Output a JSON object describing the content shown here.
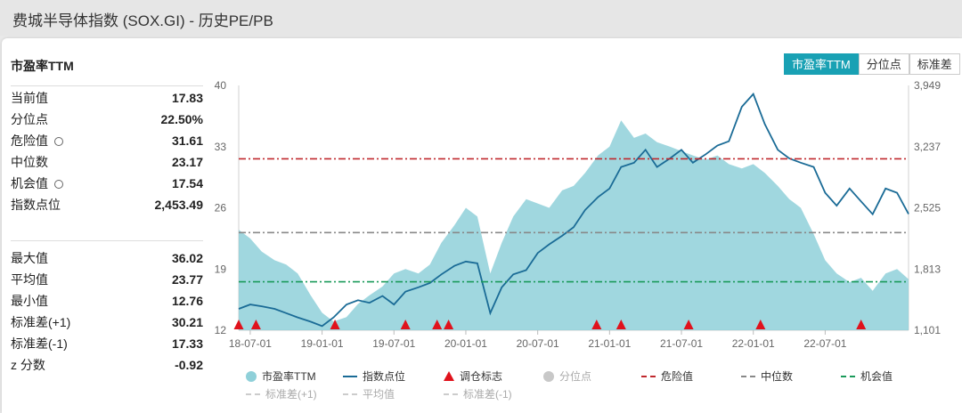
{
  "window": {
    "title": "费城半导体指数 (SOX.GI) - 历史PE/PB"
  },
  "panel": {
    "title": "市盈率TTM"
  },
  "tabs": [
    {
      "label": "市盈率TTM",
      "active": true
    },
    {
      "label": "分位点",
      "active": false
    },
    {
      "label": "标准差",
      "active": false
    }
  ],
  "stats_top": [
    {
      "label": "当前值",
      "value": "17.83",
      "gear": false
    },
    {
      "label": "分位点",
      "value": "22.50%",
      "gear": false
    },
    {
      "label": "危险值",
      "value": "31.61",
      "gear": true
    },
    {
      "label": "中位数",
      "value": "23.17",
      "gear": false
    },
    {
      "label": "机会值",
      "value": "17.54",
      "gear": true
    },
    {
      "label": "指数点位",
      "value": "2,453.49",
      "gear": false
    }
  ],
  "stats_bottom": [
    {
      "label": "最大值",
      "value": "36.02"
    },
    {
      "label": "平均值",
      "value": "23.77"
    },
    {
      "label": "最小值",
      "value": "12.76"
    },
    {
      "label": "标准差(+1)",
      "value": "30.21"
    },
    {
      "label": "标准差(-1)",
      "value": "17.33"
    },
    {
      "label": "z 分数",
      "value": "-0.92"
    }
  ],
  "chart_data": {
    "type": "area",
    "y_left_ticks": [
      "40",
      "33",
      "26",
      "19",
      "12"
    ],
    "y_left_range": [
      12,
      40
    ],
    "y_right_ticks": [
      "3,949",
      "3,237",
      "2,525",
      "1,813",
      "1,101"
    ],
    "y_right_range": [
      1101,
      3949
    ],
    "x_ticks": [
      "18-07-01",
      "19-01-01",
      "19-07-01",
      "20-01-01",
      "20-07-01",
      "21-01-01",
      "21-07-01",
      "22-01-01",
      "22-07-01"
    ],
    "x_range": [
      2018.42,
      2023.08
    ],
    "reference_lines": [
      {
        "name": "危险值",
        "value": 31.61,
        "color": "#c0282d"
      },
      {
        "name": "中位数",
        "value": 23.17,
        "color": "#888888"
      },
      {
        "name": "机会值",
        "value": 17.54,
        "color": "#1a9a5a"
      }
    ],
    "series": [
      {
        "name": "市盈率TTM",
        "axis": "left",
        "color": "#8fd0d9",
        "points": [
          [
            2018.42,
            23.5
          ],
          [
            2018.5,
            22.5
          ],
          [
            2018.58,
            21
          ],
          [
            2018.67,
            20
          ],
          [
            2018.75,
            19.5
          ],
          [
            2018.83,
            18.5
          ],
          [
            2018.92,
            16
          ],
          [
            2019.0,
            14
          ],
          [
            2019.08,
            13
          ],
          [
            2019.17,
            13.5
          ],
          [
            2019.25,
            15
          ],
          [
            2019.33,
            16
          ],
          [
            2019.42,
            17
          ],
          [
            2019.5,
            18.5
          ],
          [
            2019.58,
            19
          ],
          [
            2019.67,
            18.5
          ],
          [
            2019.75,
            19.5
          ],
          [
            2019.83,
            22
          ],
          [
            2019.92,
            24
          ],
          [
            2020.0,
            26
          ],
          [
            2020.08,
            25
          ],
          [
            2020.17,
            18.5
          ],
          [
            2020.25,
            22
          ],
          [
            2020.33,
            25
          ],
          [
            2020.42,
            27
          ],
          [
            2020.5,
            26.5
          ],
          [
            2020.58,
            26
          ],
          [
            2020.67,
            28
          ],
          [
            2020.75,
            28.5
          ],
          [
            2020.83,
            30
          ],
          [
            2020.92,
            32
          ],
          [
            2021.0,
            33
          ],
          [
            2021.08,
            36
          ],
          [
            2021.17,
            34
          ],
          [
            2021.25,
            34.5
          ],
          [
            2021.33,
            33.5
          ],
          [
            2021.42,
            33
          ],
          [
            2021.5,
            32.5
          ],
          [
            2021.58,
            32
          ],
          [
            2021.67,
            31.5
          ],
          [
            2021.75,
            32
          ],
          [
            2021.83,
            31
          ],
          [
            2021.92,
            30.5
          ],
          [
            2022.0,
            31
          ],
          [
            2022.08,
            30
          ],
          [
            2022.17,
            28.5
          ],
          [
            2022.25,
            27
          ],
          [
            2022.33,
            26
          ],
          [
            2022.42,
            23
          ],
          [
            2022.5,
            20
          ],
          [
            2022.58,
            18.5
          ],
          [
            2022.67,
            17.5
          ],
          [
            2022.75,
            18
          ],
          [
            2022.83,
            16.5
          ],
          [
            2022.92,
            18.5
          ],
          [
            2023.0,
            19
          ],
          [
            2023.08,
            17.83
          ]
        ]
      },
      {
        "name": "指数点位",
        "axis": "right",
        "color": "#1a6b96",
        "points": [
          [
            2018.42,
            1350
          ],
          [
            2018.5,
            1400
          ],
          [
            2018.58,
            1380
          ],
          [
            2018.67,
            1350
          ],
          [
            2018.75,
            1300
          ],
          [
            2018.83,
            1250
          ],
          [
            2018.92,
            1200
          ],
          [
            2019.0,
            1150
          ],
          [
            2019.08,
            1250
          ],
          [
            2019.17,
            1400
          ],
          [
            2019.25,
            1450
          ],
          [
            2019.33,
            1420
          ],
          [
            2019.42,
            1500
          ],
          [
            2019.5,
            1400
          ],
          [
            2019.58,
            1550
          ],
          [
            2019.67,
            1600
          ],
          [
            2019.75,
            1650
          ],
          [
            2019.83,
            1750
          ],
          [
            2019.92,
            1850
          ],
          [
            2020.0,
            1900
          ],
          [
            2020.08,
            1880
          ],
          [
            2020.17,
            1300
          ],
          [
            2020.25,
            1600
          ],
          [
            2020.33,
            1750
          ],
          [
            2020.42,
            1800
          ],
          [
            2020.5,
            2000
          ],
          [
            2020.58,
            2100
          ],
          [
            2020.67,
            2200
          ],
          [
            2020.75,
            2300
          ],
          [
            2020.83,
            2500
          ],
          [
            2020.92,
            2650
          ],
          [
            2021.0,
            2750
          ],
          [
            2021.08,
            3000
          ],
          [
            2021.17,
            3050
          ],
          [
            2021.25,
            3200
          ],
          [
            2021.33,
            3000
          ],
          [
            2021.42,
            3100
          ],
          [
            2021.5,
            3200
          ],
          [
            2021.58,
            3050
          ],
          [
            2021.67,
            3150
          ],
          [
            2021.75,
            3250
          ],
          [
            2021.83,
            3300
          ],
          [
            2021.92,
            3700
          ],
          [
            2022.0,
            3850
          ],
          [
            2022.08,
            3500
          ],
          [
            2022.17,
            3200
          ],
          [
            2022.25,
            3100
          ],
          [
            2022.33,
            3050
          ],
          [
            2022.42,
            3000
          ],
          [
            2022.5,
            2700
          ],
          [
            2022.58,
            2550
          ],
          [
            2022.67,
            2750
          ],
          [
            2022.75,
            2600
          ],
          [
            2022.83,
            2450
          ],
          [
            2022.92,
            2750
          ],
          [
            2023.0,
            2700
          ],
          [
            2023.08,
            2453.49
          ]
        ]
      }
    ],
    "rebalance_markers": [
      2018.42,
      2018.54,
      2019.09,
      2019.58,
      2019.8,
      2019.88,
      2020.91,
      2021.08,
      2021.55,
      2022.05,
      2022.75
    ]
  },
  "legend": {
    "row1": [
      {
        "label": "市盈率TTM",
        "kind": "dot",
        "color": "#8fd0d9"
      },
      {
        "label": "指数点位",
        "kind": "line",
        "color": "#1a6b96"
      },
      {
        "label": "调仓标志",
        "kind": "triangle",
        "color": "#e0121c"
      },
      {
        "label": "分位点",
        "kind": "dot",
        "color": "#c8c8c8"
      },
      {
        "label": "危险值",
        "kind": "dash",
        "color": "#c0282d"
      },
      {
        "label": "中位数",
        "kind": "dash",
        "color": "#888888"
      },
      {
        "label": "机会值",
        "kind": "dash",
        "color": "#1a9a5a"
      }
    ],
    "row2": [
      {
        "label": "标准差(+1)",
        "kind": "dash",
        "color": "#cccccc"
      },
      {
        "label": "平均值",
        "kind": "dash",
        "color": "#cccccc"
      },
      {
        "label": "标准差(-1)",
        "kind": "dash",
        "color": "#cccccc"
      }
    ]
  }
}
